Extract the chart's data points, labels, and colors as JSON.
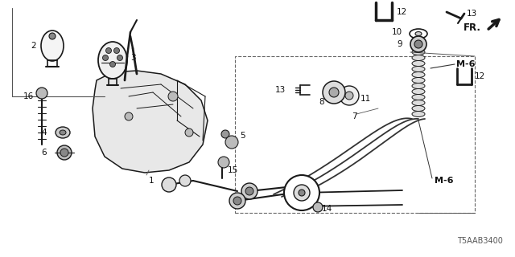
{
  "title": "",
  "bg_color": "#ffffff",
  "diagram_code": "T5AAB3400",
  "dc": "#1a1a1a",
  "lc": "#111111",
  "figsize": [
    6.4,
    3.2
  ],
  "dpi": 100
}
